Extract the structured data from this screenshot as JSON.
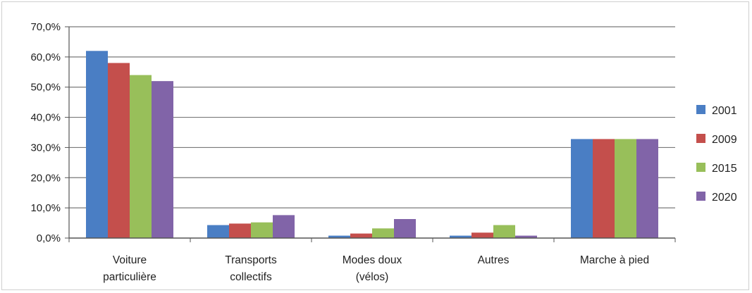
{
  "chart_data": {
    "type": "bar",
    "categories": [
      [
        "Voiture",
        "particulière"
      ],
      [
        "Transports",
        "collectifs"
      ],
      [
        "Modes doux",
        "(vélos)"
      ],
      [
        "Autres"
      ],
      [
        "Marche à pied"
      ]
    ],
    "series": [
      {
        "name": "2001",
        "color": "#4a7ec4",
        "values": [
          62.0,
          4.3,
          0.8,
          0.8,
          32.8
        ]
      },
      {
        "name": "2009",
        "color": "#c44f4c",
        "values": [
          58.0,
          4.8,
          1.5,
          1.8,
          32.8
        ]
      },
      {
        "name": "2015",
        "color": "#98bf5a",
        "values": [
          54.0,
          5.2,
          3.2,
          4.3,
          32.8
        ]
      },
      {
        "name": "2020",
        "color": "#8164a8",
        "values": [
          52.0,
          7.6,
          6.3,
          0.8,
          32.8
        ]
      }
    ],
    "y_ticks": [
      "0,0%",
      "10,0%",
      "20,0%",
      "30,0%",
      "40,0%",
      "50,0%",
      "60,0%",
      "70,0%"
    ],
    "ylim": [
      0,
      70
    ],
    "title": "",
    "xlabel": "",
    "ylabel": "",
    "grid": true,
    "legend_position": "right"
  }
}
